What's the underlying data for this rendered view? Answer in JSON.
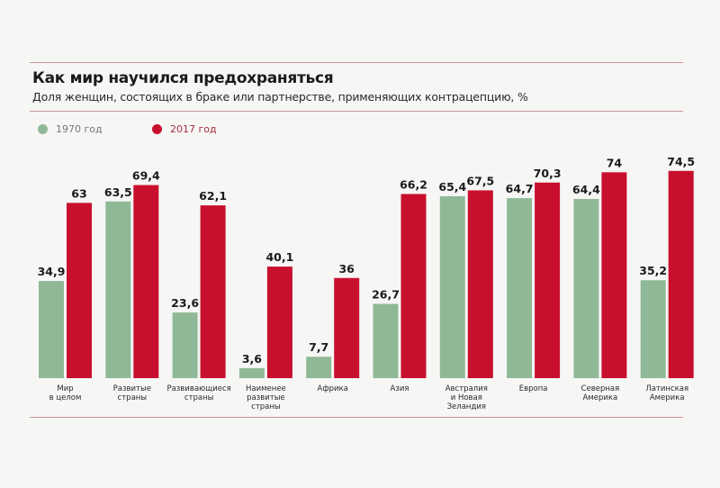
{
  "title": "Как мир научился предохраняться",
  "subtitle": "Доля женщин, состоящих в браке или партнерстве, применяющих контрацепцию, %",
  "legend": [
    {
      "label": "1970 год",
      "color": "#8fb996"
    },
    {
      "label": "2017 год",
      "color": "#c8102e"
    }
  ],
  "chart_data": {
    "type": "bar",
    "title": "Как мир научился предохраняться",
    "subtitle": "Доля женщин, состоящих в браке или партнерстве, применяющих контрацепцию, %",
    "xlabel": "",
    "ylabel": "",
    "ylim": [
      0,
      80
    ],
    "grid": false,
    "legend_position": "top-left",
    "categories": [
      [
        "Мир",
        "в целом"
      ],
      [
        "Развитые",
        "страны"
      ],
      [
        "Развивающиеся",
        "страны"
      ],
      [
        "Наименее",
        "развитые",
        "страны"
      ],
      [
        "Африка"
      ],
      [
        "Азия"
      ],
      [
        "Австралия",
        "и Новая",
        "Зеландия"
      ],
      [
        "Европа"
      ],
      [
        "Северная",
        "Америка"
      ],
      [
        "Латинская",
        "Америка"
      ]
    ],
    "series": [
      {
        "name": "1970 год",
        "color": "#8fb996",
        "values": [
          34.9,
          63.5,
          23.6,
          3.6,
          7.7,
          26.7,
          65.4,
          64.7,
          64.4,
          35.2
        ],
        "labels": [
          "34,9",
          "63,5",
          "23,6",
          "3,6",
          "7,7",
          "26,7",
          "65,4",
          "64,7",
          "64,4",
          "35,2"
        ]
      },
      {
        "name": "2017 год",
        "color": "#c8102e",
        "values": [
          63,
          69.4,
          62.1,
          40.1,
          36,
          66.2,
          67.5,
          70.3,
          74,
          74.5
        ],
        "labels": [
          "63",
          "69,4",
          "62,1",
          "40,1",
          "36",
          "66,2",
          "67,5",
          "70,3",
          "74",
          "74,5"
        ]
      }
    ]
  }
}
